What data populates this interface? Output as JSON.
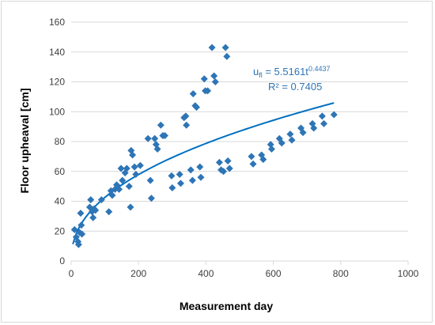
{
  "chart_data": {
    "type": "scatter",
    "title": "",
    "xlabel": "Measurement day",
    "ylabel": "Floor upheaval [cm]",
    "xlim": [
      0,
      1000
    ],
    "ylim": [
      0,
      160
    ],
    "xticks": [
      "0",
      "200",
      "400",
      "600",
      "800",
      "1000"
    ],
    "yticks": [
      "0",
      "20",
      "40",
      "60",
      "80",
      "100",
      "120",
      "140",
      "160"
    ],
    "grid": "horizontal",
    "colors": {
      "points": "#2e75b6",
      "trend": "#0070c0",
      "annotation": "#2e75b6"
    },
    "series": [
      {
        "type": "scatter",
        "points": [
          [
            10,
            21
          ],
          [
            15,
            16
          ],
          [
            20,
            13
          ],
          [
            22,
            11
          ],
          [
            25,
            19
          ],
          [
            28,
            32
          ],
          [
            30,
            24
          ],
          [
            32,
            18
          ],
          [
            55,
            36
          ],
          [
            58,
            41
          ],
          [
            62,
            33
          ],
          [
            65,
            29
          ],
          [
            68,
            35
          ],
          [
            72,
            34
          ],
          [
            90,
            41
          ],
          [
            112,
            33
          ],
          [
            118,
            47
          ],
          [
            122,
            44
          ],
          [
            130,
            48
          ],
          [
            135,
            51
          ],
          [
            142,
            48
          ],
          [
            148,
            62
          ],
          [
            152,
            54
          ],
          [
            160,
            59
          ],
          [
            165,
            62
          ],
          [
            172,
            50
          ],
          [
            176,
            36
          ],
          [
            178,
            74
          ],
          [
            182,
            71
          ],
          [
            188,
            63
          ],
          [
            192,
            58
          ],
          [
            205,
            64
          ],
          [
            228,
            82
          ],
          [
            235,
            54
          ],
          [
            238,
            42
          ],
          [
            248,
            82
          ],
          [
            252,
            78
          ],
          [
            256,
            75
          ],
          [
            266,
            91
          ],
          [
            272,
            84
          ],
          [
            278,
            84
          ],
          [
            298,
            57
          ],
          [
            300,
            49
          ],
          [
            322,
            58
          ],
          [
            325,
            52
          ],
          [
            335,
            96
          ],
          [
            340,
            97
          ],
          [
            342,
            91
          ],
          [
            355,
            61
          ],
          [
            360,
            54
          ],
          [
            362,
            112
          ],
          [
            368,
            104
          ],
          [
            372,
            103
          ],
          [
            382,
            63
          ],
          [
            385,
            56
          ],
          [
            395,
            122
          ],
          [
            398,
            114
          ],
          [
            405,
            114
          ],
          [
            418,
            143
          ],
          [
            424,
            124
          ],
          [
            428,
            120
          ],
          [
            440,
            66
          ],
          [
            445,
            61
          ],
          [
            452,
            60
          ],
          [
            458,
            143
          ],
          [
            462,
            137
          ],
          [
            465,
            67
          ],
          [
            470,
            62
          ],
          [
            535,
            70
          ],
          [
            540,
            65
          ],
          [
            565,
            71
          ],
          [
            570,
            68
          ],
          [
            592,
            78
          ],
          [
            595,
            75
          ],
          [
            618,
            82
          ],
          [
            625,
            79
          ],
          [
            650,
            85
          ],
          [
            655,
            81
          ],
          [
            682,
            89
          ],
          [
            688,
            86
          ],
          [
            716,
            92
          ],
          [
            720,
            89
          ],
          [
            745,
            97
          ],
          [
            750,
            92
          ],
          [
            780,
            98
          ]
        ]
      },
      {
        "type": "trendline",
        "formula": "u = 5.5161 t^0.4437",
        "a": 5.5161,
        "b": 0.4437,
        "x_range": [
          5,
          780
        ]
      }
    ],
    "annotations": {
      "equation_prefix": "u",
      "equation_subscript": "fl",
      "equation_body": " = 5.5161t",
      "equation_exponent": "0.4437",
      "r_squared": "R² = 0.7405"
    }
  }
}
